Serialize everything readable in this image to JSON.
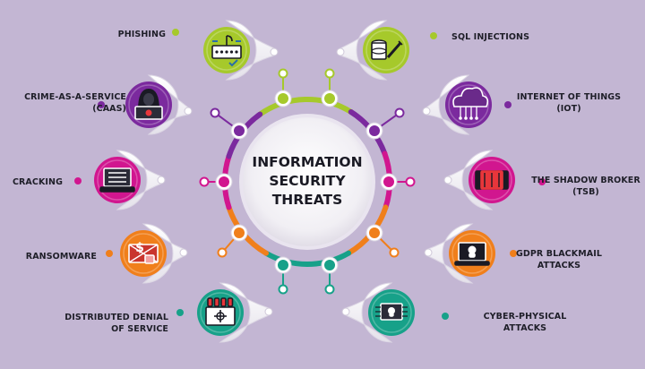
{
  "center_title": "INFORMATION\nSECURITY\nTHREATS",
  "colors": {
    "background": "#c3b6d3",
    "lime": "#a6c92b",
    "purple": "#7b2a9e",
    "magenta": "#d1168f",
    "orange": "#f07f1b",
    "teal": "#17a189",
    "red": "#e8363b"
  },
  "threats": [
    {
      "label": "PHISHING",
      "icon": "phishing-icon"
    },
    {
      "label": "CRIME-AS-A-SERVICE\n(CAAS)",
      "icon": "hacker-icon"
    },
    {
      "label": "CRACKING",
      "icon": "cracking-laptop-icon"
    },
    {
      "label": "RANSOMWARE",
      "icon": "ransomware-icon"
    },
    {
      "label": "DISTRIBUTED DENIAL\nOF SERVICE",
      "icon": "ddos-icon"
    },
    {
      "label": "SQL INJECTIONS",
      "icon": "sql-injection-icon"
    },
    {
      "label": "INTERNET OF THINGS\n(IOT)",
      "icon": "iot-cloud-icon"
    },
    {
      "label": "THE SHADOW BROKER\n(TSB)",
      "icon": "shadow-broker-icon"
    },
    {
      "label": "GDPR BLACKMAIL\nATTACKS",
      "icon": "blackmail-laptop-icon"
    },
    {
      "label": "CYBER-PHYSICAL\nATTACKS",
      "icon": "cyber-physical-icon"
    }
  ]
}
